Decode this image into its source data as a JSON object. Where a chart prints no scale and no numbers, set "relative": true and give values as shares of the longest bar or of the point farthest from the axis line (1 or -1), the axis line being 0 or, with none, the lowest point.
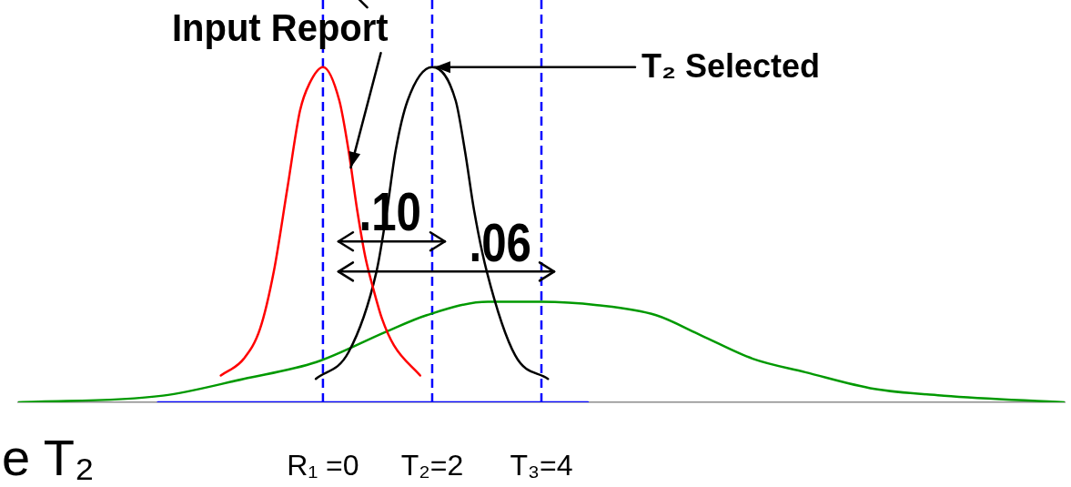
{
  "chart_data": {
    "type": "line",
    "relative": true,
    "marker": "none",
    "tick_labels": "x",
    "xlim": [
      -5.58,
      13.58
    ],
    "xticks": [
      {
        "value": 0,
        "label": "R₁ =0"
      },
      {
        "value": 2,
        "label": "T₂=2"
      },
      {
        "value": 4,
        "label": "T₃=4"
      }
    ],
    "series": [
      {
        "color": "#ff0000",
        "x": [
          -1.87,
          -1.45,
          -1.15,
          -0.9,
          -0.65,
          -0.42,
          -0.25,
          0,
          0.3,
          0.47,
          0.63,
          0.78,
          0.92,
          1.08,
          1.3,
          1.78
        ],
        "values": [
          0.08,
          0.13,
          0.22,
          0.39,
          0.64,
          0.87,
          0.95,
          1,
          0.9,
          0.75,
          0.57,
          0.43,
          0.34,
          0.25,
          0.17,
          0.08
        ]
      },
      {
        "color": "#000000",
        "x": [
          -0.13,
          0.47,
          0.98,
          1.17,
          1.33,
          1.55,
          2,
          2.43,
          2.6,
          2.77,
          3,
          3.52,
          4.12
        ],
        "values": [
          0.07,
          0.15,
          0.39,
          0.57,
          0.75,
          0.9,
          1,
          0.9,
          0.75,
          0.57,
          0.39,
          0.14,
          0.07
        ]
      },
      {
        "color": "#009900",
        "x": [
          -5.58,
          -2.93,
          -1.45,
          -0.12,
          1.15,
          1.9,
          3.02,
          4,
          5.02,
          6.1,
          6.92,
          7.87,
          8.83,
          10.1,
          11.37,
          13.58
        ],
        "values": [
          0,
          0.02,
          0.07,
          0.12,
          0.21,
          0.26,
          0.3,
          0.3,
          0.29,
          0.26,
          0.2,
          0.13,
          0.09,
          0.04,
          0.02,
          0
        ]
      },
      {
        "color": "#0000ff",
        "x": [
          -3.02,
          4.85
        ],
        "values": [
          0,
          0
        ]
      }
    ],
    "ref_lines": [
      {
        "axis": "x",
        "value": 0,
        "color": "#0000ff",
        "line_style": "dashed"
      },
      {
        "axis": "x",
        "value": 2,
        "color": "#0000ff",
        "line_style": "dashed"
      },
      {
        "axis": "x",
        "value": 4,
        "color": "#0000ff",
        "line_style": "dashed"
      }
    ],
    "annotations": [
      {
        "text": "Input Report",
        "x": 0.51,
        "y": 0.7
      },
      {
        "text": "T₂ Selected",
        "x": 2,
        "y": 1
      },
      {
        "text": ".10",
        "x": 2,
        "y": 0.48
      },
      {
        "text": ".06",
        "x": 4,
        "y": 0.39
      },
      "e T₂"
    ]
  }
}
